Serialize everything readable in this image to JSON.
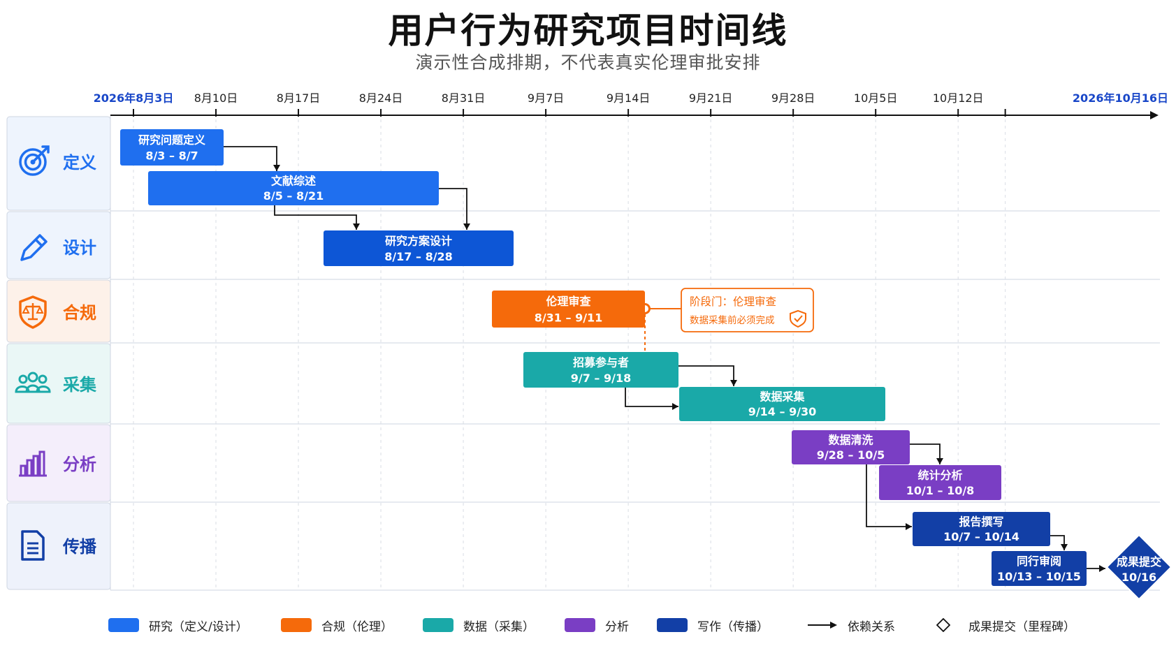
{
  "title": "用户行为研究项目时间线",
  "subtitle": "演示性合成排期，不代表真实伦理审批安排",
  "colors": {
    "research": "#1f6fef",
    "research_dark": "#0d56d6",
    "compliance": "#f56a0b",
    "data": "#1aa9a8",
    "analysis": "#7a3ec4",
    "writing": "#123fa6",
    "milestone": "#123fa6",
    "grid": "#d7dbe2",
    "axis": "#111111",
    "axis_end_label": "#1846c8"
  },
  "chart_data": {
    "type": "gantt",
    "axis": {
      "start": "2026-08-03",
      "end": "2026-10-16",
      "ticks": [
        {
          "date": "2026-08-03",
          "label": "2026年8月3日",
          "highlight": true
        },
        {
          "date": "2026-08-10",
          "label": "8月10日"
        },
        {
          "date": "2026-08-17",
          "label": "8月17日"
        },
        {
          "date": "2026-08-24",
          "label": "8月24日"
        },
        {
          "date": "2026-08-31",
          "label": "8月31日"
        },
        {
          "date": "2026-09-07",
          "label": "9月7日"
        },
        {
          "date": "2026-09-14",
          "label": "9月14日"
        },
        {
          "date": "2026-09-21",
          "label": "9月21日"
        },
        {
          "date": "2026-09-28",
          "label": "9月28日"
        },
        {
          "date": "2026-10-05",
          "label": "10月5日"
        },
        {
          "date": "2026-10-12",
          "label": "10月12日"
        },
        {
          "date": "2026-10-16",
          "label": "2026年10月16日",
          "highlight": true
        }
      ]
    },
    "phases": [
      {
        "id": "define",
        "label": "定义",
        "icon": "target-icon",
        "color": "#1f6fef",
        "bg": "#eef4fd"
      },
      {
        "id": "design",
        "label": "设计",
        "icon": "pencil-icon",
        "color": "#1f6fef",
        "bg": "#eef4fd"
      },
      {
        "id": "comply",
        "label": "合规",
        "icon": "shield-scale-icon",
        "color": "#f56a0b",
        "bg": "#fdf1e9"
      },
      {
        "id": "collect",
        "label": "采集",
        "icon": "people-icon",
        "color": "#1aa9a8",
        "bg": "#eaf7f6"
      },
      {
        "id": "analyze",
        "label": "分析",
        "icon": "bar-chart-icon",
        "color": "#7a3ec4",
        "bg": "#f4eefb"
      },
      {
        "id": "publish",
        "label": "传播",
        "icon": "document-icon",
        "color": "#123fa6",
        "bg": "#eef2fb"
      }
    ],
    "tasks": [
      {
        "id": "t1",
        "phase": "define",
        "name": "研究问题定义",
        "dates": "8/3 – 8/7",
        "start": "2026-08-03",
        "end": "2026-08-07",
        "color": "#1f6fef"
      },
      {
        "id": "t2",
        "phase": "define",
        "name": "文献综述",
        "dates": "8/5 – 8/21",
        "start": "2026-08-05",
        "end": "2026-08-21",
        "color": "#1f6fef"
      },
      {
        "id": "t3",
        "phase": "design",
        "name": "研究方案设计",
        "dates": "8/17 – 8/28",
        "start": "2026-08-17",
        "end": "2026-08-28",
        "color": "#0d56d6"
      },
      {
        "id": "t4",
        "phase": "comply",
        "name": "伦理审查",
        "dates": "8/31 – 9/11",
        "start": "2026-08-31",
        "end": "2026-09-11",
        "color": "#f56a0b"
      },
      {
        "id": "t5",
        "phase": "collect",
        "name": "招募参与者",
        "dates": "9/7 – 9/18",
        "start": "2026-09-07",
        "end": "2026-09-18",
        "color": "#1aa9a8"
      },
      {
        "id": "t6",
        "phase": "collect",
        "name": "数据采集",
        "dates": "9/14 – 9/30",
        "start": "2026-09-14",
        "end": "2026-09-30",
        "color": "#1aa9a8"
      },
      {
        "id": "t7",
        "phase": "analyze",
        "name": "数据清洗",
        "dates": "9/28 – 10/5",
        "start": "2026-09-28",
        "end": "2026-10-05",
        "color": "#7a3ec4"
      },
      {
        "id": "t8",
        "phase": "analyze",
        "name": "统计分析",
        "dates": "10/1 – 10/8",
        "start": "2026-10-01",
        "end": "2026-10-08",
        "color": "#7a3ec4"
      },
      {
        "id": "t9",
        "phase": "publish",
        "name": "报告撰写",
        "dates": "10/7 – 10/14",
        "start": "2026-10-07",
        "end": "2026-10-14",
        "color": "#123fa6"
      },
      {
        "id": "t10",
        "phase": "publish",
        "name": "同行审阅",
        "dates": "10/13 – 10/15",
        "start": "2026-10-13",
        "end": "2026-10-15",
        "color": "#123fa6"
      }
    ],
    "milestone": {
      "name": "成果提交",
      "dates": "10/16",
      "date": "2026-10-16",
      "color": "#123fa6"
    },
    "dependencies": [
      {
        "from": "t1",
        "to": "t2"
      },
      {
        "from": "t2",
        "to": "t3"
      },
      {
        "from": "t2",
        "to": "t3"
      },
      {
        "from": "t4",
        "to": "t5"
      },
      {
        "from": "t5",
        "to": "t6"
      },
      {
        "from": "t5",
        "to": "t6"
      },
      {
        "from": "t7",
        "to": "t8"
      },
      {
        "from": "t7",
        "to": "t9"
      },
      {
        "from": "t9",
        "to": "t10"
      },
      {
        "from": "t10",
        "to": "milestone"
      }
    ],
    "gate": {
      "title": "阶段门：伦理审查",
      "note": "数据采集前必须完成",
      "icon": "shield-check-icon",
      "color": "#f56a0b"
    },
    "legend": [
      {
        "kind": "swatch",
        "label": "研究（定义/设计）",
        "color": "#1f6fef"
      },
      {
        "kind": "swatch",
        "label": "合规（伦理）",
        "color": "#f56a0b"
      },
      {
        "kind": "swatch",
        "label": "数据（采集）",
        "color": "#1aa9a8"
      },
      {
        "kind": "swatch",
        "label": "分析",
        "color": "#7a3ec4"
      },
      {
        "kind": "swatch",
        "label": "写作（传播）",
        "color": "#123fa6"
      },
      {
        "kind": "arrow",
        "label": "依赖关系",
        "color": "#111111"
      },
      {
        "kind": "diamond",
        "label": "成果提交（里程碑）",
        "color": "#111111"
      }
    ]
  }
}
